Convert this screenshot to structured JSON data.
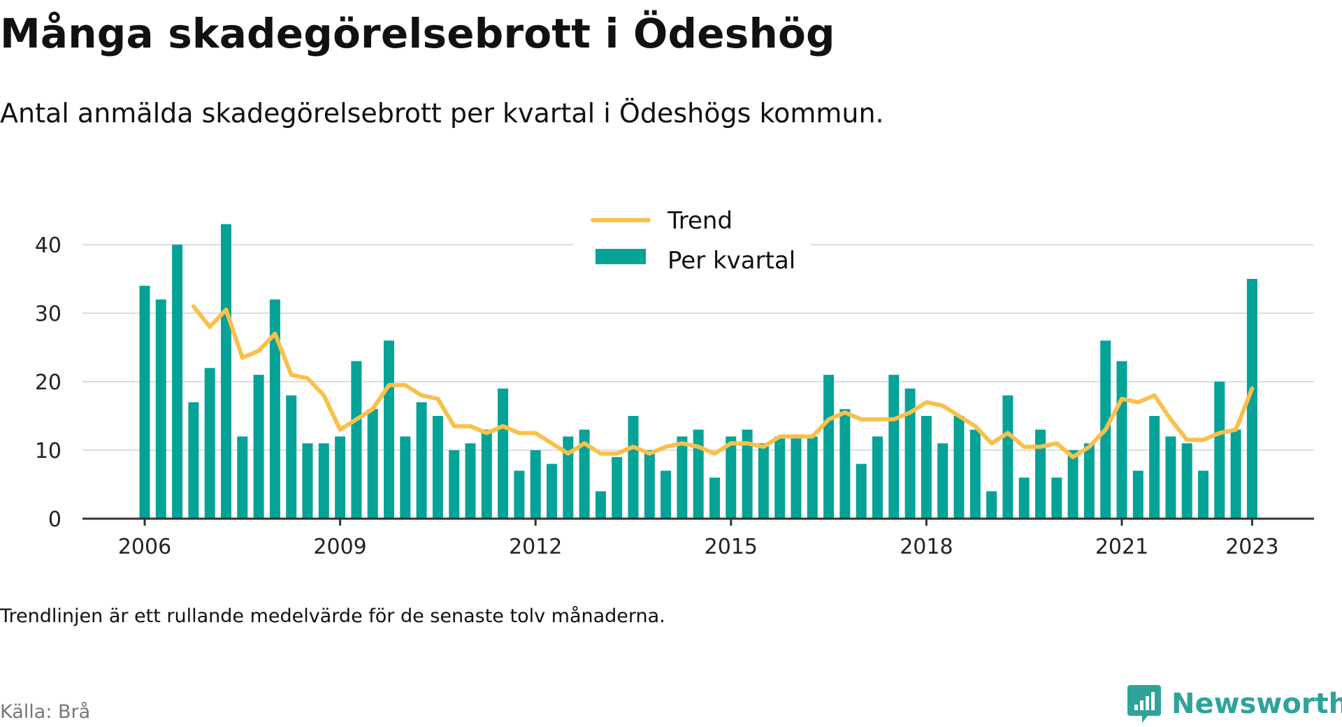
{
  "title": "Många skadegörelsebrott i Ödeshög",
  "subtitle": "Antal anmälda skadegörelsebrott per kvartal i Ödeshögs kommun.",
  "note": "Trendlinjen är ett rullande medelvärde för de senaste tolv månaderna.",
  "source": "Källa: Brå",
  "brand": "Newsworthy",
  "colors": {
    "bar": "#05a397",
    "trend": "#f9c04a",
    "grid": "#dddddd",
    "axis": "#333333",
    "brand": "#2fa39a"
  },
  "chart_data": {
    "type": "bar",
    "xlabel": "",
    "ylabel": "",
    "ylim": [
      0,
      45
    ],
    "yticks": [
      0,
      10,
      20,
      30,
      40
    ],
    "xticks": [
      "2006",
      "2009",
      "2012",
      "2015",
      "2018",
      "2021",
      "2023"
    ],
    "grid": true,
    "legend_position": "top-center",
    "categories": [
      "2006 Q1",
      "2006 Q2",
      "2006 Q3",
      "2006 Q4",
      "2007 Q1",
      "2007 Q2",
      "2007 Q3",
      "2007 Q4",
      "2008 Q1",
      "2008 Q2",
      "2008 Q3",
      "2008 Q4",
      "2009 Q1",
      "2009 Q2",
      "2009 Q3",
      "2009 Q4",
      "2010 Q1",
      "2010 Q2",
      "2010 Q3",
      "2010 Q4",
      "2011 Q1",
      "2011 Q2",
      "2011 Q3",
      "2011 Q4",
      "2012 Q1",
      "2012 Q2",
      "2012 Q3",
      "2012 Q4",
      "2013 Q1",
      "2013 Q2",
      "2013 Q3",
      "2013 Q4",
      "2014 Q1",
      "2014 Q2",
      "2014 Q3",
      "2014 Q4",
      "2015 Q1",
      "2015 Q2",
      "2015 Q3",
      "2015 Q4",
      "2016 Q1",
      "2016 Q2",
      "2016 Q3",
      "2016 Q4",
      "2017 Q1",
      "2017 Q2",
      "2017 Q3",
      "2017 Q4",
      "2018 Q1",
      "2018 Q2",
      "2018 Q3",
      "2018 Q4",
      "2019 Q1",
      "2019 Q2",
      "2019 Q3",
      "2019 Q4",
      "2020 Q1",
      "2020 Q2",
      "2020 Q3",
      "2020 Q4",
      "2021 Q1",
      "2021 Q2",
      "2021 Q3",
      "2021 Q4",
      "2022 Q1",
      "2022 Q2",
      "2022 Q3",
      "2022 Q4",
      "2023 Q1"
    ],
    "series": [
      {
        "name": "Per kvartal",
        "type": "bar",
        "values": [
          34,
          32,
          40,
          17,
          22,
          43,
          12,
          21,
          32,
          18,
          11,
          11,
          12,
          23,
          16,
          26,
          12,
          17,
          15,
          10,
          11,
          13,
          19,
          7,
          10,
          8,
          12,
          13,
          4,
          9,
          15,
          10,
          7,
          12,
          13,
          6,
          12,
          13,
          11,
          12,
          12,
          12,
          21,
          16,
          8,
          12,
          21,
          19,
          15,
          11,
          15,
          13,
          4,
          18,
          6,
          13,
          6,
          10,
          11,
          26,
          23,
          7,
          15,
          12,
          11,
          7,
          20,
          13,
          35
        ]
      },
      {
        "name": "Trend",
        "type": "line",
        "values": [
          null,
          null,
          null,
          31,
          28,
          30.5,
          23.5,
          24.5,
          27,
          21,
          20.5,
          18,
          13,
          14.5,
          16,
          19.5,
          19.5,
          18,
          17.5,
          13.5,
          13.5,
          12.5,
          13.5,
          12.5,
          12.5,
          11,
          9.5,
          11,
          9.5,
          9.5,
          10.5,
          9.5,
          10.5,
          11,
          10.5,
          9.5,
          11,
          11,
          10.5,
          12,
          12,
          12,
          14.5,
          15.5,
          14.5,
          14.5,
          14.5,
          15.5,
          17,
          16.5,
          15,
          13.5,
          11,
          12.5,
          10.5,
          10.5,
          11,
          9,
          10.5,
          13,
          17.5,
          17,
          18,
          14.5,
          11.5,
          11.5,
          12.5,
          13,
          19
        ]
      }
    ]
  }
}
